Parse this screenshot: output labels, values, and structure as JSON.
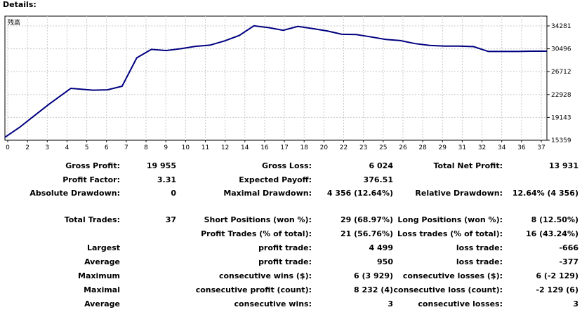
{
  "header": {
    "title": "Details:"
  },
  "chart_data": {
    "type": "line",
    "legend_label": "残高",
    "line_color": "#000080",
    "x": [
      0,
      1,
      2,
      3,
      4.5,
      5.5,
      6,
      7,
      8,
      9,
      10,
      11,
      12,
      13,
      14,
      15,
      16,
      17,
      18,
      19,
      20,
      21,
      22,
      23,
      24,
      25,
      26,
      27,
      28,
      29,
      30,
      31,
      32,
      33,
      34,
      35,
      36,
      37
    ],
    "y": [
      15850,
      17500,
      19400,
      21300,
      23950,
      23750,
      23650,
      23700,
      24300,
      29000,
      30400,
      30200,
      30500,
      30900,
      31100,
      31800,
      32700,
      34300,
      34000,
      33550,
      34200,
      33850,
      33450,
      32900,
      32850,
      32450,
      32050,
      31850,
      31350,
      31050,
      30950,
      30950,
      30850,
      30050,
      30050,
      30050,
      30100,
      30100
    ],
    "x_ticks": [
      "0",
      "2",
      "3",
      "4",
      "5",
      "6",
      "7",
      "8",
      "9",
      "10",
      "11",
      "12",
      "14",
      "16",
      "17",
      "18",
      "20",
      "22",
      "23",
      "25",
      "26",
      "28",
      "29",
      "31",
      "32",
      "34",
      "36",
      "37"
    ],
    "y_ticks": [
      "34281",
      "30496",
      "26712",
      "22928",
      "19143",
      "15359"
    ],
    "ylim": [
      15359,
      35900
    ],
    "grid": true
  },
  "stats": {
    "gross_profit_label": "Gross Profit:",
    "gross_profit_value": "19 955",
    "gross_loss_label": "Gross Loss:",
    "gross_loss_value": "6 024",
    "total_net_profit_label": "Total Net Profit:",
    "total_net_profit_value": "13 931",
    "profit_factor_label": "Profit Factor:",
    "profit_factor_value": "3.31",
    "expected_payoff_label": "Expected Payoff:",
    "expected_payoff_value": "376.51",
    "absolute_drawdown_label": "Absolute Drawdown:",
    "absolute_drawdown_value": "0",
    "maximal_drawdown_label": "Maximal Drawdown:",
    "maximal_drawdown_value": "4 356 (12.64%)",
    "relative_drawdown_label": "Relative Drawdown:",
    "relative_drawdown_value": "12.64% (4 356)",
    "total_trades_label": "Total Trades:",
    "total_trades_value": "37",
    "short_positions_label": "Short Positions (won %):",
    "short_positions_value": "29 (68.97%)",
    "long_positions_label": "Long Positions (won %):",
    "long_positions_value": "8 (12.50%)",
    "profit_trades_label": "Profit Trades (% of total):",
    "profit_trades_value": "21 (56.76%)",
    "loss_trades_label": "Loss trades (% of total):",
    "loss_trades_value": "16 (43.24%)",
    "largest_label": "Largest",
    "largest_profit_label": "profit trade:",
    "largest_profit_value": "4 499",
    "largest_loss_label": "loss trade:",
    "largest_loss_value": "-666",
    "average_label": "Average",
    "average_profit_label": "profit trade:",
    "average_profit_value": "950",
    "average_loss_label": "loss trade:",
    "average_loss_value": "-377",
    "maximum_label": "Maximum",
    "max_consec_wins_label": "consecutive wins ($):",
    "max_consec_wins_value": "6 (3 929)",
    "max_consec_losses_label": "consecutive losses ($):",
    "max_consec_losses_value": "6 (-2 129)",
    "maximal_label": "Maximal",
    "maximal_consec_profit_label": "consecutive profit (count):",
    "maximal_consec_profit_value": "8 232 (4)",
    "maximal_consec_loss_label": "consecutive loss (count):",
    "maximal_consec_loss_value": "-2 129 (6)",
    "average2_label": "Average",
    "avg_consec_wins_label": "consecutive wins:",
    "avg_consec_wins_value": "3",
    "avg_consec_losses_label": "consecutive losses:",
    "avg_consec_losses_value": "3"
  }
}
